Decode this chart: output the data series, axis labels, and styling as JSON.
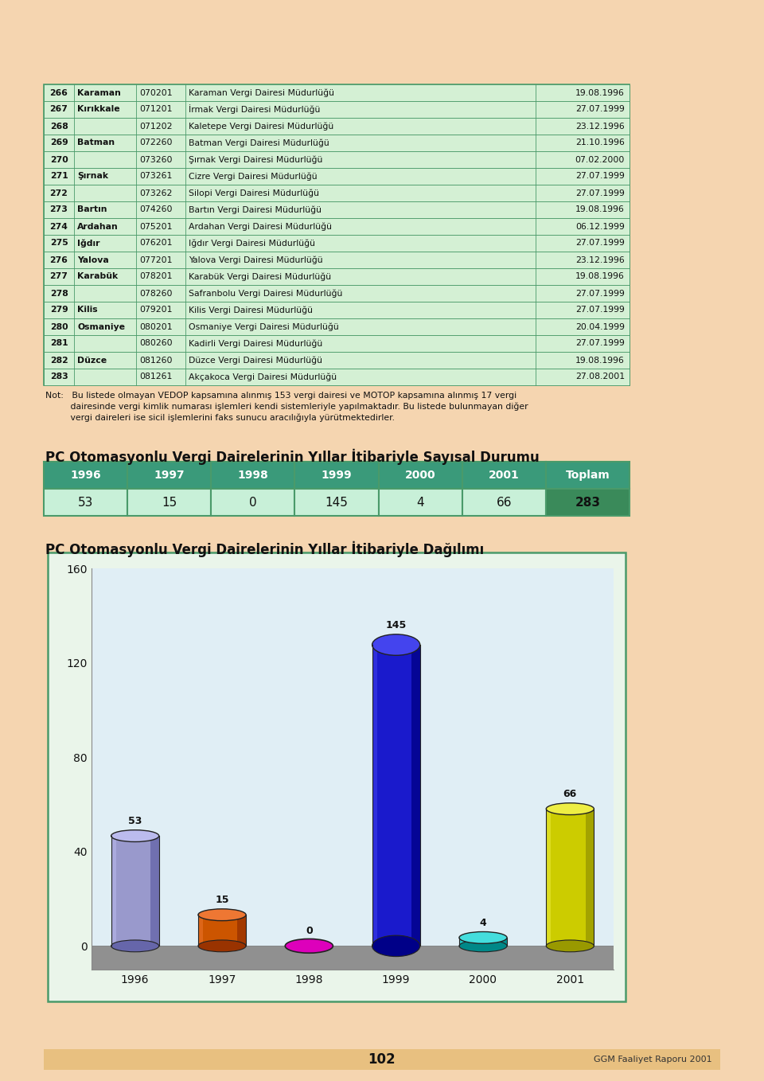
{
  "bg_color": "#f5d5b0",
  "table_bg": "#d4f0d4",
  "table_border": "#4a9a6a",
  "table_text_color": "#1a1a1a",
  "table2_header_bg": "#3a9a7a",
  "table2_data_bg": "#c8f0d8",
  "table2_total_bg": "#3a8a5a",
  "chart_bg_outer": "#eaf5ea",
  "chart_bg_inner": "#e0eef5",
  "chart_border": "#4a9a6a",
  "footer_bg": "#e8c080",
  "rows": [
    {
      "num": "266",
      "city": "Karaman",
      "code": "070201",
      "name": "Karaman Vergi Dairesi Müdurlüğü",
      "date": "19.08.1996"
    },
    {
      "num": "267",
      "city": "Kırıkkale",
      "code": "071201",
      "name": "İrmak Vergi Dairesi Müdurlüğü",
      "date": "27.07.1999"
    },
    {
      "num": "268",
      "city": "",
      "code": "071202",
      "name": "Kaletepe Vergi Dairesi Müdurlüğü",
      "date": "23.12.1996"
    },
    {
      "num": "269",
      "city": "Batman",
      "code": "072260",
      "name": "Batman Vergi Dairesi Müdurlüğü",
      "date": "21.10.1996"
    },
    {
      "num": "270",
      "city": "",
      "code": "073260",
      "name": "Şırnak Vergi Dairesi Müdurlüğü",
      "date": "07.02.2000"
    },
    {
      "num": "271",
      "city": "Şırnak",
      "code": "073261",
      "name": "Cizre Vergi Dairesi Müdurlüğü",
      "date": "27.07.1999"
    },
    {
      "num": "272",
      "city": "",
      "code": "073262",
      "name": "Silopi Vergi Dairesi Müdurlüğü",
      "date": "27.07.1999"
    },
    {
      "num": "273",
      "city": "Bartın",
      "code": "074260",
      "name": "Bartın Vergi Dairesi Müdurlüğü",
      "date": "19.08.1996"
    },
    {
      "num": "274",
      "city": "Ardahan",
      "code": "075201",
      "name": "Ardahan Vergi Dairesi Müdurlüğü",
      "date": "06.12.1999"
    },
    {
      "num": "275",
      "city": "Iğdır",
      "code": "076201",
      "name": "Iğdır Vergi Dairesi Müdurlüğü",
      "date": "27.07.1999"
    },
    {
      "num": "276",
      "city": "Yalova",
      "code": "077201",
      "name": "Yalova Vergi Dairesi Müdurlüğü",
      "date": "23.12.1996"
    },
    {
      "num": "277",
      "city": "Karabük",
      "code": "078201",
      "name": "Karabük Vergi Dairesi Müdurlüğü",
      "date": "19.08.1996"
    },
    {
      "num": "278",
      "city": "",
      "code": "078260",
      "name": "Safranbolu Vergi Dairesi Müdurlüğü",
      "date": "27.07.1999"
    },
    {
      "num": "279",
      "city": "Kilis",
      "code": "079201",
      "name": "Kilis Vergi Dairesi Müdurlüğü",
      "date": "27.07.1999"
    },
    {
      "num": "280",
      "city": "Osmaniye",
      "code": "080201",
      "name": "Osmaniye Vergi Dairesi Müdurlüğü",
      "date": "20.04.1999"
    },
    {
      "num": "281",
      "city": "",
      "code": "080260",
      "name": "Kadirli Vergi Dairesi Müdurlüğü",
      "date": "27.07.1999"
    },
    {
      "num": "282",
      "city": "Düzce",
      "code": "081260",
      "name": "Düzce Vergi Dairesi Müdurlüğü",
      "date": "19.08.1996"
    },
    {
      "num": "283",
      "city": "",
      "code": "081261",
      "name": "Akçakoca Vergi Dairesi Müdurlüğü",
      "date": "27.08.2001"
    }
  ],
  "note_line1": "Not:   Bu listede olmayan VEDOP kapsamına alınmış 153 vergi dairesi ve MOTOP kapsamına alınmış 17 vergi",
  "note_line2": "         dairesinde vergi kimlik numarası işlemleri kendi sistemleriyle yapılmaktadır. Bu listede bulunmayan diğer",
  "note_line3": "         vergi daireleri ise sicil işlemlerini faks sunucu aracılığıyla yürütmektedirler.",
  "table2_title": "PC Otomasyonlu Vergi Dairelerinin Yıllar İtibariyle Sayısal Durumu",
  "table2_headers": [
    "1996",
    "1997",
    "1998",
    "1999",
    "2000",
    "2001",
    "Toplam"
  ],
  "table2_values": [
    "53",
    "15",
    "0",
    "145",
    "4",
    "66",
    "283"
  ],
  "chart_title": "PC Otomasyonlu Vergi Dairelerinin Yıllar İtibariyle Dağılımı",
  "chart_years": [
    "1996",
    "1997",
    "1998",
    "1999",
    "2000",
    "2001"
  ],
  "chart_values": [
    53,
    15,
    0,
    145,
    4,
    66
  ],
  "bar_colors": [
    "#9999cc",
    "#cc5500",
    "#dd00bb",
    "#1a1acc",
    "#00bbbb",
    "#cccc00"
  ],
  "bar_dark": [
    "#6666aa",
    "#993300",
    "#990088",
    "#000088",
    "#008888",
    "#999900"
  ],
  "bar_light": [
    "#bbbbee",
    "#ee7733",
    "#ff44dd",
    "#4444ee",
    "#44dddd",
    "#eeee44"
  ],
  "page_num": "102",
  "page_footer": "GGM Faaliyet Raporu 2001"
}
